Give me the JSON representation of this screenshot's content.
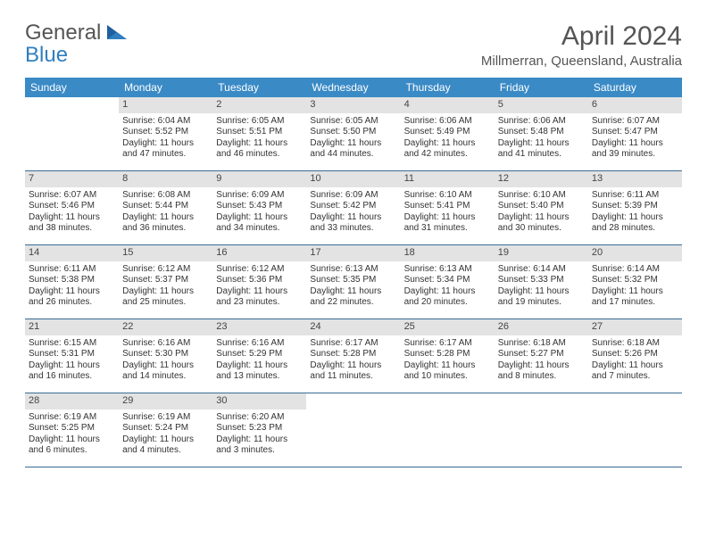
{
  "brand": {
    "line1": "General",
    "line2": "Blue"
  },
  "title": "April 2024",
  "location": "Millmerran, Queensland, Australia",
  "colors": {
    "header_bg": "#3a8ac6",
    "header_text": "#ffffff",
    "daynum_bg": "#e3e3e3",
    "week_divider": "#3a6b93",
    "brand_accent": "#2f7fbf",
    "text": "#333333"
  },
  "day_names": [
    "Sunday",
    "Monday",
    "Tuesday",
    "Wednesday",
    "Thursday",
    "Friday",
    "Saturday"
  ],
  "weeks": [
    [
      null,
      {
        "n": "1",
        "sunrise": "Sunrise: 6:04 AM",
        "sunset": "Sunset: 5:52 PM",
        "day1": "Daylight: 11 hours",
        "day2": "and 47 minutes."
      },
      {
        "n": "2",
        "sunrise": "Sunrise: 6:05 AM",
        "sunset": "Sunset: 5:51 PM",
        "day1": "Daylight: 11 hours",
        "day2": "and 46 minutes."
      },
      {
        "n": "3",
        "sunrise": "Sunrise: 6:05 AM",
        "sunset": "Sunset: 5:50 PM",
        "day1": "Daylight: 11 hours",
        "day2": "and 44 minutes."
      },
      {
        "n": "4",
        "sunrise": "Sunrise: 6:06 AM",
        "sunset": "Sunset: 5:49 PM",
        "day1": "Daylight: 11 hours",
        "day2": "and 42 minutes."
      },
      {
        "n": "5",
        "sunrise": "Sunrise: 6:06 AM",
        "sunset": "Sunset: 5:48 PM",
        "day1": "Daylight: 11 hours",
        "day2": "and 41 minutes."
      },
      {
        "n": "6",
        "sunrise": "Sunrise: 6:07 AM",
        "sunset": "Sunset: 5:47 PM",
        "day1": "Daylight: 11 hours",
        "day2": "and 39 minutes."
      }
    ],
    [
      {
        "n": "7",
        "sunrise": "Sunrise: 6:07 AM",
        "sunset": "Sunset: 5:46 PM",
        "day1": "Daylight: 11 hours",
        "day2": "and 38 minutes."
      },
      {
        "n": "8",
        "sunrise": "Sunrise: 6:08 AM",
        "sunset": "Sunset: 5:44 PM",
        "day1": "Daylight: 11 hours",
        "day2": "and 36 minutes."
      },
      {
        "n": "9",
        "sunrise": "Sunrise: 6:09 AM",
        "sunset": "Sunset: 5:43 PM",
        "day1": "Daylight: 11 hours",
        "day2": "and 34 minutes."
      },
      {
        "n": "10",
        "sunrise": "Sunrise: 6:09 AM",
        "sunset": "Sunset: 5:42 PM",
        "day1": "Daylight: 11 hours",
        "day2": "and 33 minutes."
      },
      {
        "n": "11",
        "sunrise": "Sunrise: 6:10 AM",
        "sunset": "Sunset: 5:41 PM",
        "day1": "Daylight: 11 hours",
        "day2": "and 31 minutes."
      },
      {
        "n": "12",
        "sunrise": "Sunrise: 6:10 AM",
        "sunset": "Sunset: 5:40 PM",
        "day1": "Daylight: 11 hours",
        "day2": "and 30 minutes."
      },
      {
        "n": "13",
        "sunrise": "Sunrise: 6:11 AM",
        "sunset": "Sunset: 5:39 PM",
        "day1": "Daylight: 11 hours",
        "day2": "and 28 minutes."
      }
    ],
    [
      {
        "n": "14",
        "sunrise": "Sunrise: 6:11 AM",
        "sunset": "Sunset: 5:38 PM",
        "day1": "Daylight: 11 hours",
        "day2": "and 26 minutes."
      },
      {
        "n": "15",
        "sunrise": "Sunrise: 6:12 AM",
        "sunset": "Sunset: 5:37 PM",
        "day1": "Daylight: 11 hours",
        "day2": "and 25 minutes."
      },
      {
        "n": "16",
        "sunrise": "Sunrise: 6:12 AM",
        "sunset": "Sunset: 5:36 PM",
        "day1": "Daylight: 11 hours",
        "day2": "and 23 minutes."
      },
      {
        "n": "17",
        "sunrise": "Sunrise: 6:13 AM",
        "sunset": "Sunset: 5:35 PM",
        "day1": "Daylight: 11 hours",
        "day2": "and 22 minutes."
      },
      {
        "n": "18",
        "sunrise": "Sunrise: 6:13 AM",
        "sunset": "Sunset: 5:34 PM",
        "day1": "Daylight: 11 hours",
        "day2": "and 20 minutes."
      },
      {
        "n": "19",
        "sunrise": "Sunrise: 6:14 AM",
        "sunset": "Sunset: 5:33 PM",
        "day1": "Daylight: 11 hours",
        "day2": "and 19 minutes."
      },
      {
        "n": "20",
        "sunrise": "Sunrise: 6:14 AM",
        "sunset": "Sunset: 5:32 PM",
        "day1": "Daylight: 11 hours",
        "day2": "and 17 minutes."
      }
    ],
    [
      {
        "n": "21",
        "sunrise": "Sunrise: 6:15 AM",
        "sunset": "Sunset: 5:31 PM",
        "day1": "Daylight: 11 hours",
        "day2": "and 16 minutes."
      },
      {
        "n": "22",
        "sunrise": "Sunrise: 6:16 AM",
        "sunset": "Sunset: 5:30 PM",
        "day1": "Daylight: 11 hours",
        "day2": "and 14 minutes."
      },
      {
        "n": "23",
        "sunrise": "Sunrise: 6:16 AM",
        "sunset": "Sunset: 5:29 PM",
        "day1": "Daylight: 11 hours",
        "day2": "and 13 minutes."
      },
      {
        "n": "24",
        "sunrise": "Sunrise: 6:17 AM",
        "sunset": "Sunset: 5:28 PM",
        "day1": "Daylight: 11 hours",
        "day2": "and 11 minutes."
      },
      {
        "n": "25",
        "sunrise": "Sunrise: 6:17 AM",
        "sunset": "Sunset: 5:28 PM",
        "day1": "Daylight: 11 hours",
        "day2": "and 10 minutes."
      },
      {
        "n": "26",
        "sunrise": "Sunrise: 6:18 AM",
        "sunset": "Sunset: 5:27 PM",
        "day1": "Daylight: 11 hours",
        "day2": "and 8 minutes."
      },
      {
        "n": "27",
        "sunrise": "Sunrise: 6:18 AM",
        "sunset": "Sunset: 5:26 PM",
        "day1": "Daylight: 11 hours",
        "day2": "and 7 minutes."
      }
    ],
    [
      {
        "n": "28",
        "sunrise": "Sunrise: 6:19 AM",
        "sunset": "Sunset: 5:25 PM",
        "day1": "Daylight: 11 hours",
        "day2": "and 6 minutes."
      },
      {
        "n": "29",
        "sunrise": "Sunrise: 6:19 AM",
        "sunset": "Sunset: 5:24 PM",
        "day1": "Daylight: 11 hours",
        "day2": "and 4 minutes."
      },
      {
        "n": "30",
        "sunrise": "Sunrise: 6:20 AM",
        "sunset": "Sunset: 5:23 PM",
        "day1": "Daylight: 11 hours",
        "day2": "and 3 minutes."
      },
      null,
      null,
      null,
      null
    ]
  ]
}
